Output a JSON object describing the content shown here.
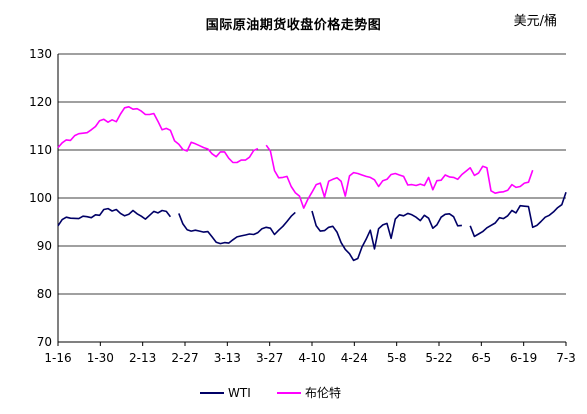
{
  "chart_data": {
    "type": "line",
    "title": "国际原油期货收盘价格走势图",
    "unit_label": "美元/桶",
    "ylim": [
      70,
      130
    ],
    "yticks": [
      70,
      80,
      90,
      100,
      110,
      120,
      130
    ],
    "grid": true,
    "legend": "bottom",
    "x_tick_labels": [
      "1-16",
      "1-30",
      "2-13",
      "2-27",
      "3-13",
      "3-27",
      "4-10",
      "4-24",
      "5-8",
      "5-22",
      "6-5",
      "6-19",
      "7-3"
    ],
    "series": [
      {
        "name": "WTI",
        "color": "#000066",
        "segments": [
          [
            [
              0,
              94.2
            ],
            [
              1,
              95.5
            ],
            [
              2,
              96
            ],
            [
              3,
              95.8
            ],
            [
              5,
              95.7
            ],
            [
              6,
              96.2
            ],
            [
              7,
              96.1
            ],
            [
              8,
              95.9
            ],
            [
              9,
              96.5
            ],
            [
              10,
              96.4
            ],
            [
              11,
              97.6
            ],
            [
              12,
              97.8
            ],
            [
              13,
              97.3
            ],
            [
              14,
              97.6
            ],
            [
              15,
              96.8
            ],
            [
              16,
              96.3
            ],
            [
              17,
              96.6
            ],
            [
              18,
              97.4
            ],
            [
              19,
              96.7
            ],
            [
              20,
              96.2
            ],
            [
              21,
              95.6
            ],
            [
              22,
              96.4
            ],
            [
              23,
              97.2
            ],
            [
              24,
              96.9
            ],
            [
              25,
              97.4
            ],
            [
              26,
              97.2
            ],
            [
              27,
              96.1
            ]
          ],
          [
            [
              29,
              96.8
            ],
            [
              30,
              94.6
            ],
            [
              31,
              93.4
            ],
            [
              32,
              93.1
            ],
            [
              33,
              93.3
            ],
            [
              34,
              93.1
            ],
            [
              35,
              92.9
            ],
            [
              36,
              93
            ],
            [
              37,
              91.9
            ],
            [
              38,
              90.8
            ],
            [
              39,
              90.5
            ],
            [
              40,
              90.7
            ],
            [
              41,
              90.6
            ],
            [
              42,
              91.3
            ],
            [
              43,
              91.9
            ],
            [
              44,
              92.1
            ],
            [
              45,
              92.3
            ],
            [
              46,
              92.5
            ],
            [
              47,
              92.4
            ],
            [
              48,
              92.8
            ],
            [
              49,
              93.6
            ],
            [
              50,
              93.9
            ],
            [
              51,
              93.7
            ],
            [
              52,
              92.4
            ],
            [
              53,
              93.3
            ],
            [
              54,
              94.1
            ],
            [
              55,
              95.1
            ],
            [
              56,
              96.2
            ],
            [
              57,
              97
            ]
          ],
          [
            [
              61,
              97.3
            ],
            [
              62,
              94.2
            ],
            [
              63,
              93.1
            ],
            [
              64,
              93.2
            ],
            [
              65,
              93.9
            ],
            [
              66,
              94.1
            ],
            [
              67,
              92.9
            ],
            [
              68,
              90.7
            ],
            [
              69,
              89.3
            ],
            [
              70,
              88.4
            ],
            [
              71,
              87
            ],
            [
              72,
              87.4
            ],
            [
              73,
              89.8
            ],
            [
              74,
              91.4
            ],
            [
              75,
              93.3
            ],
            [
              76,
              89.4
            ],
            [
              77,
              93.6
            ],
            [
              78,
              94.4
            ],
            [
              79,
              94.7
            ],
            [
              80,
              91.6
            ],
            [
              81,
              95.6
            ],
            [
              82,
              96.5
            ],
            [
              83,
              96.3
            ],
            [
              84,
              96.8
            ],
            [
              85,
              96.5
            ],
            [
              86,
              96
            ],
            [
              87,
              95.3
            ],
            [
              88,
              96.4
            ],
            [
              89,
              95.8
            ],
            [
              90,
              93.7
            ],
            [
              91,
              94.4
            ],
            [
              92,
              96
            ],
            [
              93,
              96.6
            ],
            [
              94,
              96.7
            ],
            [
              95,
              96.1
            ],
            [
              96,
              94.2
            ],
            [
              97,
              94.3
            ]
          ],
          [
            [
              99,
              94.2
            ],
            [
              100,
              92
            ],
            [
              101,
              92.5
            ],
            [
              102,
              93
            ],
            [
              103,
              93.8
            ],
            [
              104,
              94.3
            ],
            [
              105,
              94.8
            ],
            [
              106,
              95.9
            ],
            [
              107,
              95.7
            ],
            [
              108,
              96.3
            ],
            [
              109,
              97.4
            ],
            [
              110,
              96.9
            ],
            [
              111,
              98.4
            ],
            [
              112,
              98.3
            ],
            [
              113,
              98.2
            ],
            [
              114,
              93.9
            ],
            [
              115,
              94.3
            ],
            [
              116,
              95.1
            ],
            [
              117,
              96
            ],
            [
              118,
              96.4
            ],
            [
              119,
              97.1
            ],
            [
              120,
              98
            ],
            [
              121,
              98.6
            ],
            [
              122,
              101.2
            ]
          ]
        ]
      },
      {
        "name": "布伦特",
        "color": "#ff00ff",
        "segments": [
          [
            [
              0,
              110.5
            ],
            [
              1,
              111.5
            ],
            [
              2,
              112.1
            ],
            [
              3,
              112
            ],
            [
              4,
              113
            ],
            [
              5,
              113.4
            ],
            [
              6,
              113.5
            ],
            [
              7,
              113.6
            ],
            [
              8,
              114.2
            ],
            [
              9,
              114.9
            ],
            [
              10,
              116.1
            ],
            [
              11,
              116.4
            ],
            [
              12,
              115.8
            ],
            [
              13,
              116.3
            ],
            [
              14,
              115.9
            ],
            [
              15,
              117.5
            ],
            [
              16,
              118.8
            ],
            [
              17,
              119
            ],
            [
              18,
              118.5
            ],
            [
              19,
              118.6
            ],
            [
              20,
              118.1
            ],
            [
              21,
              117.4
            ],
            [
              22,
              117.4
            ],
            [
              23,
              117.6
            ],
            [
              24,
              116
            ],
            [
              25,
              114.2
            ],
            [
              26,
              114.5
            ],
            [
              27,
              114.1
            ],
            [
              28,
              111.9
            ],
            [
              29,
              111.2
            ],
            [
              30,
              110.1
            ],
            [
              31,
              109.8
            ],
            [
              32,
              111.6
            ],
            [
              33,
              111.3
            ],
            [
              34,
              110.9
            ],
            [
              35,
              110.5
            ],
            [
              36,
              110.2
            ],
            [
              37,
              109.2
            ],
            [
              38,
              108.6
            ],
            [
              39,
              109.6
            ],
            [
              40,
              109.6
            ],
            [
              41,
              108.3
            ],
            [
              42,
              107.4
            ],
            [
              43,
              107.4
            ],
            [
              44,
              107.9
            ],
            [
              45,
              107.9
            ],
            [
              46,
              108.5
            ],
            [
              47,
              109.9
            ],
            [
              48,
              110.3
            ]
          ],
          [
            [
              50,
              111
            ],
            [
              51,
              109.8
            ],
            [
              52,
              105.7
            ],
            [
              53,
              104.2
            ],
            [
              54,
              104.3
            ],
            [
              55,
              104.5
            ],
            [
              56,
              102.4
            ],
            [
              57,
              101.1
            ],
            [
              58,
              100.4
            ],
            [
              59,
              97.9
            ],
            [
              60,
              99.7
            ],
            [
              61,
              101.2
            ],
            [
              62,
              102.8
            ],
            [
              63,
              103.1
            ],
            [
              64,
              100.2
            ],
            [
              65,
              103.5
            ],
            [
              66,
              103.9
            ],
            [
              67,
              104.2
            ],
            [
              68,
              103.5
            ],
            [
              69,
              100.4
            ],
            [
              70,
              104.6
            ],
            [
              71,
              105.3
            ],
            [
              72,
              105.1
            ],
            [
              73,
              104.8
            ],
            [
              74,
              104.5
            ],
            [
              75,
              104.3
            ],
            [
              76,
              103.8
            ],
            [
              77,
              102.4
            ],
            [
              78,
              103.6
            ],
            [
              79,
              103.9
            ],
            [
              80,
              104.9
            ],
            [
              81,
              105.1
            ],
            [
              82,
              104.8
            ],
            [
              83,
              104.5
            ],
            [
              84,
              102.7
            ],
            [
              85,
              102.8
            ],
            [
              86,
              102.6
            ],
            [
              87,
              102.9
            ],
            [
              88,
              102.6
            ],
            [
              89,
              104.3
            ],
            [
              90,
              101.7
            ],
            [
              91,
              103.6
            ],
            [
              92,
              103.7
            ],
            [
              93,
              104.8
            ],
            [
              94,
              104.4
            ],
            [
              95,
              104.3
            ],
            [
              96,
              103.9
            ],
            [
              97,
              104.9
            ],
            [
              98,
              105.6
            ],
            [
              99,
              106.3
            ],
            [
              100,
              104.7
            ],
            [
              101,
              105.2
            ],
            [
              102,
              106.6
            ],
            [
              103,
              106.3
            ],
            [
              104,
              101.5
            ],
            [
              105,
              101
            ],
            [
              106,
              101.2
            ],
            [
              107,
              101.3
            ],
            [
              108,
              101.6
            ],
            [
              109,
              102.8
            ],
            [
              110,
              102.2
            ],
            [
              111,
              102.4
            ],
            [
              112,
              103.1
            ],
            [
              113,
              103.3
            ],
            [
              114,
              105.8
            ]
          ]
        ]
      }
    ]
  }
}
